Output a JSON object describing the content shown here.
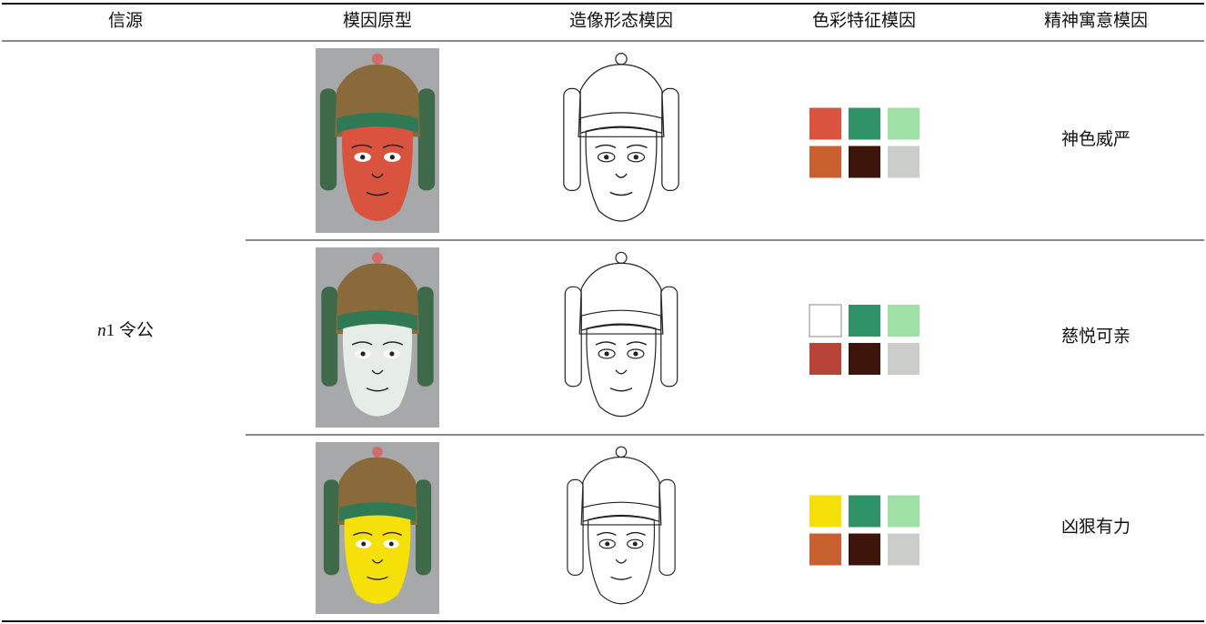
{
  "table": {
    "header": [
      "信源",
      "模因原型",
      "造像形态模因",
      "色彩特征模因",
      "精神寓意模因"
    ],
    "source_italic": "n",
    "source_name": "1 令公",
    "rows": [
      {
        "meaning": "神色威严",
        "swatches": [
          "#d9533f",
          "#2e9467",
          "#9fe0a6",
          "#c8602f",
          "#3d150a",
          "#c9cec8"
        ]
      },
      {
        "meaning": "慈悦可亲",
        "swatches": [
          "#ffffff",
          "#2e9467",
          "#9fe0a6",
          "#b84339",
          "#3d150a",
          "#c9cec8"
        ]
      },
      {
        "meaning": "凶狠有力",
        "swatches": [
          "#f5e00a",
          "#2e9467",
          "#9fe0a6",
          "#c8602f",
          "#3d150a",
          "#c9cec8"
        ]
      }
    ]
  }
}
